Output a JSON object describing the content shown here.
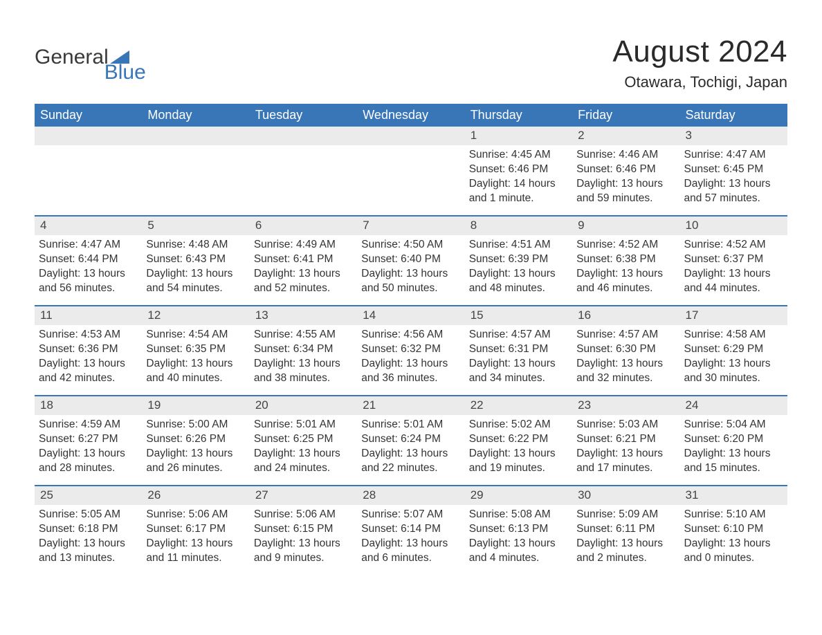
{
  "brand": {
    "text1": "General",
    "text2": "Blue"
  },
  "title": "August 2024",
  "location": "Otawara, Tochigi, Japan",
  "colors": {
    "header_bg": "#3876b8",
    "header_text": "#ffffff",
    "row_divider": "#3876b8",
    "daynum_bg": "#ebebeb",
    "body_text": "#333333",
    "title_text": "#2a2a2a",
    "brand_blue": "#3876b8",
    "page_bg": "#ffffff"
  },
  "typography": {
    "title_fontsize_pt": 33,
    "location_fontsize_pt": 17,
    "header_fontsize_pt": 14,
    "body_fontsize_pt": 12,
    "daynum_fontsize_pt": 13,
    "font_family": "Arial"
  },
  "day_headers": [
    "Sunday",
    "Monday",
    "Tuesday",
    "Wednesday",
    "Thursday",
    "Friday",
    "Saturday"
  ],
  "weeks": [
    [
      {
        "n": "",
        "empty": true
      },
      {
        "n": "",
        "empty": true
      },
      {
        "n": "",
        "empty": true
      },
      {
        "n": "",
        "empty": true
      },
      {
        "n": "1",
        "sunrise": "Sunrise: 4:45 AM",
        "sunset": "Sunset: 6:46 PM",
        "daylight": "Daylight: 14 hours and 1 minute."
      },
      {
        "n": "2",
        "sunrise": "Sunrise: 4:46 AM",
        "sunset": "Sunset: 6:46 PM",
        "daylight": "Daylight: 13 hours and 59 minutes."
      },
      {
        "n": "3",
        "sunrise": "Sunrise: 4:47 AM",
        "sunset": "Sunset: 6:45 PM",
        "daylight": "Daylight: 13 hours and 57 minutes."
      }
    ],
    [
      {
        "n": "4",
        "sunrise": "Sunrise: 4:47 AM",
        "sunset": "Sunset: 6:44 PM",
        "daylight": "Daylight: 13 hours and 56 minutes."
      },
      {
        "n": "5",
        "sunrise": "Sunrise: 4:48 AM",
        "sunset": "Sunset: 6:43 PM",
        "daylight": "Daylight: 13 hours and 54 minutes."
      },
      {
        "n": "6",
        "sunrise": "Sunrise: 4:49 AM",
        "sunset": "Sunset: 6:41 PM",
        "daylight": "Daylight: 13 hours and 52 minutes."
      },
      {
        "n": "7",
        "sunrise": "Sunrise: 4:50 AM",
        "sunset": "Sunset: 6:40 PM",
        "daylight": "Daylight: 13 hours and 50 minutes."
      },
      {
        "n": "8",
        "sunrise": "Sunrise: 4:51 AM",
        "sunset": "Sunset: 6:39 PM",
        "daylight": "Daylight: 13 hours and 48 minutes."
      },
      {
        "n": "9",
        "sunrise": "Sunrise: 4:52 AM",
        "sunset": "Sunset: 6:38 PM",
        "daylight": "Daylight: 13 hours and 46 minutes."
      },
      {
        "n": "10",
        "sunrise": "Sunrise: 4:52 AM",
        "sunset": "Sunset: 6:37 PM",
        "daylight": "Daylight: 13 hours and 44 minutes."
      }
    ],
    [
      {
        "n": "11",
        "sunrise": "Sunrise: 4:53 AM",
        "sunset": "Sunset: 6:36 PM",
        "daylight": "Daylight: 13 hours and 42 minutes."
      },
      {
        "n": "12",
        "sunrise": "Sunrise: 4:54 AM",
        "sunset": "Sunset: 6:35 PM",
        "daylight": "Daylight: 13 hours and 40 minutes."
      },
      {
        "n": "13",
        "sunrise": "Sunrise: 4:55 AM",
        "sunset": "Sunset: 6:34 PM",
        "daylight": "Daylight: 13 hours and 38 minutes."
      },
      {
        "n": "14",
        "sunrise": "Sunrise: 4:56 AM",
        "sunset": "Sunset: 6:32 PM",
        "daylight": "Daylight: 13 hours and 36 minutes."
      },
      {
        "n": "15",
        "sunrise": "Sunrise: 4:57 AM",
        "sunset": "Sunset: 6:31 PM",
        "daylight": "Daylight: 13 hours and 34 minutes."
      },
      {
        "n": "16",
        "sunrise": "Sunrise: 4:57 AM",
        "sunset": "Sunset: 6:30 PM",
        "daylight": "Daylight: 13 hours and 32 minutes."
      },
      {
        "n": "17",
        "sunrise": "Sunrise: 4:58 AM",
        "sunset": "Sunset: 6:29 PM",
        "daylight": "Daylight: 13 hours and 30 minutes."
      }
    ],
    [
      {
        "n": "18",
        "sunrise": "Sunrise: 4:59 AM",
        "sunset": "Sunset: 6:27 PM",
        "daylight": "Daylight: 13 hours and 28 minutes."
      },
      {
        "n": "19",
        "sunrise": "Sunrise: 5:00 AM",
        "sunset": "Sunset: 6:26 PM",
        "daylight": "Daylight: 13 hours and 26 minutes."
      },
      {
        "n": "20",
        "sunrise": "Sunrise: 5:01 AM",
        "sunset": "Sunset: 6:25 PM",
        "daylight": "Daylight: 13 hours and 24 minutes."
      },
      {
        "n": "21",
        "sunrise": "Sunrise: 5:01 AM",
        "sunset": "Sunset: 6:24 PM",
        "daylight": "Daylight: 13 hours and 22 minutes."
      },
      {
        "n": "22",
        "sunrise": "Sunrise: 5:02 AM",
        "sunset": "Sunset: 6:22 PM",
        "daylight": "Daylight: 13 hours and 19 minutes."
      },
      {
        "n": "23",
        "sunrise": "Sunrise: 5:03 AM",
        "sunset": "Sunset: 6:21 PM",
        "daylight": "Daylight: 13 hours and 17 minutes."
      },
      {
        "n": "24",
        "sunrise": "Sunrise: 5:04 AM",
        "sunset": "Sunset: 6:20 PM",
        "daylight": "Daylight: 13 hours and 15 minutes."
      }
    ],
    [
      {
        "n": "25",
        "sunrise": "Sunrise: 5:05 AM",
        "sunset": "Sunset: 6:18 PM",
        "daylight": "Daylight: 13 hours and 13 minutes."
      },
      {
        "n": "26",
        "sunrise": "Sunrise: 5:06 AM",
        "sunset": "Sunset: 6:17 PM",
        "daylight": "Daylight: 13 hours and 11 minutes."
      },
      {
        "n": "27",
        "sunrise": "Sunrise: 5:06 AM",
        "sunset": "Sunset: 6:15 PM",
        "daylight": "Daylight: 13 hours and 9 minutes."
      },
      {
        "n": "28",
        "sunrise": "Sunrise: 5:07 AM",
        "sunset": "Sunset: 6:14 PM",
        "daylight": "Daylight: 13 hours and 6 minutes."
      },
      {
        "n": "29",
        "sunrise": "Sunrise: 5:08 AM",
        "sunset": "Sunset: 6:13 PM",
        "daylight": "Daylight: 13 hours and 4 minutes."
      },
      {
        "n": "30",
        "sunrise": "Sunrise: 5:09 AM",
        "sunset": "Sunset: 6:11 PM",
        "daylight": "Daylight: 13 hours and 2 minutes."
      },
      {
        "n": "31",
        "sunrise": "Sunrise: 5:10 AM",
        "sunset": "Sunset: 6:10 PM",
        "daylight": "Daylight: 13 hours and 0 minutes."
      }
    ]
  ]
}
